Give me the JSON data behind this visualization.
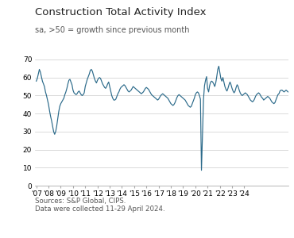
{
  "title": "Construction Total Activity Index",
  "subtitle": "sa, >50 = growth since previous month",
  "source_text": "Sources: S&P Global, CIPS.\nData were collected 11-29 April 2024.",
  "line_color": "#2b6a8a",
  "background_color": "#ffffff",
  "ylim": [
    0,
    70
  ],
  "yticks": [
    0,
    10,
    20,
    30,
    40,
    50,
    60,
    70
  ],
  "values": [
    58.0,
    59.5,
    62.0,
    64.5,
    63.0,
    60.5,
    58.0,
    56.5,
    55.0,
    52.0,
    50.0,
    47.5,
    45.0,
    41.5,
    38.5,
    36.0,
    33.0,
    30.0,
    28.5,
    30.0,
    33.0,
    37.0,
    41.0,
    44.0,
    45.5,
    46.5,
    47.5,
    48.5,
    50.5,
    52.0,
    54.0,
    56.5,
    58.5,
    59.0,
    57.5,
    56.0,
    53.0,
    51.5,
    51.0,
    50.5,
    51.0,
    52.0,
    52.5,
    51.5,
    50.5,
    50.0,
    50.5,
    51.5,
    55.0,
    57.0,
    59.0,
    60.5,
    62.0,
    64.0,
    64.5,
    63.5,
    61.5,
    59.5,
    58.0,
    57.0,
    58.5,
    59.5,
    60.0,
    59.5,
    58.0,
    56.5,
    55.5,
    54.5,
    54.0,
    55.0,
    56.5,
    57.5,
    55.0,
    52.5,
    50.0,
    48.5,
    47.5,
    47.5,
    48.0,
    49.5,
    51.0,
    52.0,
    53.5,
    54.5,
    55.0,
    55.5,
    56.0,
    55.5,
    54.5,
    53.5,
    52.5,
    52.0,
    52.5,
    53.0,
    54.0,
    55.0,
    54.5,
    54.0,
    53.5,
    53.0,
    52.5,
    52.0,
    51.5,
    51.0,
    51.5,
    52.0,
    53.0,
    54.0,
    54.5,
    54.0,
    53.5,
    52.5,
    51.5,
    50.5,
    50.0,
    49.5,
    49.0,
    48.5,
    48.0,
    47.5,
    48.0,
    49.0,
    50.0,
    50.5,
    51.0,
    50.5,
    50.0,
    49.5,
    49.0,
    48.5,
    47.5,
    46.5,
    45.5,
    45.0,
    44.5,
    45.0,
    46.0,
    47.5,
    49.0,
    50.0,
    50.5,
    50.0,
    49.5,
    49.0,
    48.5,
    48.0,
    47.5,
    46.5,
    45.5,
    44.5,
    44.0,
    43.5,
    44.0,
    45.5,
    47.0,
    48.5,
    50.5,
    51.5,
    52.0,
    51.5,
    50.0,
    48.0,
    8.5,
    28.0,
    48.0,
    55.5,
    58.5,
    60.5,
    54.0,
    52.0,
    55.5,
    57.5,
    58.0,
    57.5,
    56.5,
    55.0,
    57.0,
    60.5,
    64.5,
    66.3,
    63.0,
    59.5,
    58.0,
    60.0,
    57.5,
    55.0,
    53.5,
    52.5,
    54.0,
    56.0,
    57.5,
    56.0,
    54.0,
    52.5,
    51.5,
    52.5,
    54.5,
    56.0,
    55.0,
    53.0,
    51.5,
    50.5,
    50.0,
    50.5,
    51.0,
    51.5,
    51.0,
    50.5,
    49.5,
    48.5,
    47.5,
    47.0,
    46.5,
    47.0,
    48.0,
    49.5,
    50.5,
    51.0,
    51.5,
    51.0,
    50.0,
    49.0,
    48.5,
    47.5,
    48.0,
    48.5,
    49.0,
    49.5,
    49.0,
    48.5,
    47.5,
    46.5,
    46.0,
    45.5,
    46.0,
    47.5,
    49.0,
    50.5,
    51.0,
    52.5,
    53.0,
    53.0,
    52.5,
    52.0,
    52.5,
    53.0,
    52.5,
    52.0
  ],
  "xtick_years": [
    "'07",
    "'08",
    "'09",
    "'10",
    "'11",
    "'12",
    "'13",
    "'14",
    "'15",
    "'16",
    "'17",
    "'18",
    "'19",
    "'20",
    "'21",
    "'22",
    "'23",
    "'24"
  ],
  "xtick_positions": [
    0,
    12,
    24,
    36,
    48,
    60,
    72,
    84,
    96,
    108,
    120,
    132,
    144,
    156,
    168,
    180,
    192,
    204
  ]
}
